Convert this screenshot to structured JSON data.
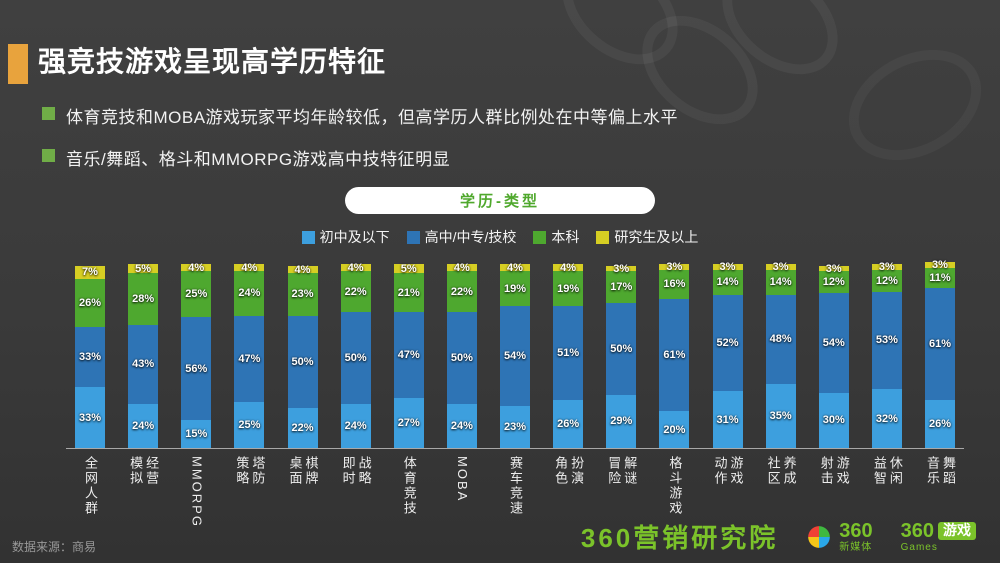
{
  "slide": {
    "title": "强竞技游戏呈现高学历特征",
    "bullets": [
      "体育竞技和MOBA游戏玩家平均年龄较低，但高学历人群比例处在中等偏上水平",
      "音乐/舞蹈、格斗和MMORPG游戏高中技特征明显"
    ],
    "chart_header": "学历-类型"
  },
  "footer": {
    "source": "数据来源：商易",
    "brands": {
      "institute": "360营销研究院",
      "media_name": "360",
      "media_sub": "新媒体",
      "games_name": "360",
      "games_badge": "游戏",
      "games_sub": "Games"
    }
  },
  "colors": {
    "accent_bar": "#e8a33d",
    "bullet_green": "#70ad47",
    "pill_green": "#4fa82c",
    "brand_green": "#7bc32a"
  },
  "chart_data": {
    "type": "bar",
    "stacked": true,
    "unit": "%",
    "title": "学历-类型",
    "ylim": [
      0,
      100
    ],
    "grid": false,
    "legend_position": "top",
    "categories": [
      "全网人群",
      "模拟经营",
      "MMORPG",
      "策略塔防",
      "桌面棋牌",
      "即时战略",
      "体育竞技",
      "MOBA",
      "赛车竞速",
      "角色扮演",
      "冒险解谜",
      "格斗游戏",
      "动作游戏",
      "社区养成",
      "射击游戏",
      "益智休闲",
      "音乐舞蹈"
    ],
    "category_lines": [
      [
        "全网人群"
      ],
      [
        "模拟",
        "经营"
      ],
      [
        "MMORPG"
      ],
      [
        "策略",
        "塔防"
      ],
      [
        "桌面",
        "棋牌"
      ],
      [
        "即时",
        "战略"
      ],
      [
        "体育竞技"
      ],
      [
        "MOBA"
      ],
      [
        "赛车竞速"
      ],
      [
        "角色",
        "扮演"
      ],
      [
        "冒险",
        "解谜"
      ],
      [
        "格斗游戏"
      ],
      [
        "动作",
        "游戏"
      ],
      [
        "社区",
        "养成"
      ],
      [
        "射击",
        "游戏"
      ],
      [
        "益智",
        "休闲"
      ],
      [
        "音乐",
        "舞蹈"
      ]
    ],
    "series": [
      {
        "name": "初中及以下",
        "color": "#3d9fde",
        "values": [
          33,
          24,
          15,
          25,
          22,
          24,
          27,
          24,
          23,
          26,
          29,
          20,
          31,
          35,
          30,
          32,
          26
        ]
      },
      {
        "name": "高中/中专/技校",
        "color": "#2e74b5",
        "values": [
          33,
          43,
          56,
          47,
          50,
          50,
          47,
          50,
          54,
          51,
          50,
          61,
          52,
          48,
          54,
          53,
          61
        ]
      },
      {
        "name": "本科",
        "color": "#4ea82f",
        "values": [
          26,
          28,
          25,
          24,
          23,
          22,
          21,
          22,
          19,
          19,
          17,
          16,
          14,
          14,
          12,
          12,
          11
        ]
      },
      {
        "name": "研究生及以上",
        "color": "#d6ce23",
        "values": [
          7,
          5,
          4,
          4,
          4,
          4,
          5,
          4,
          4,
          4,
          3,
          3,
          3,
          3,
          3,
          3,
          3
        ]
      }
    ]
  }
}
